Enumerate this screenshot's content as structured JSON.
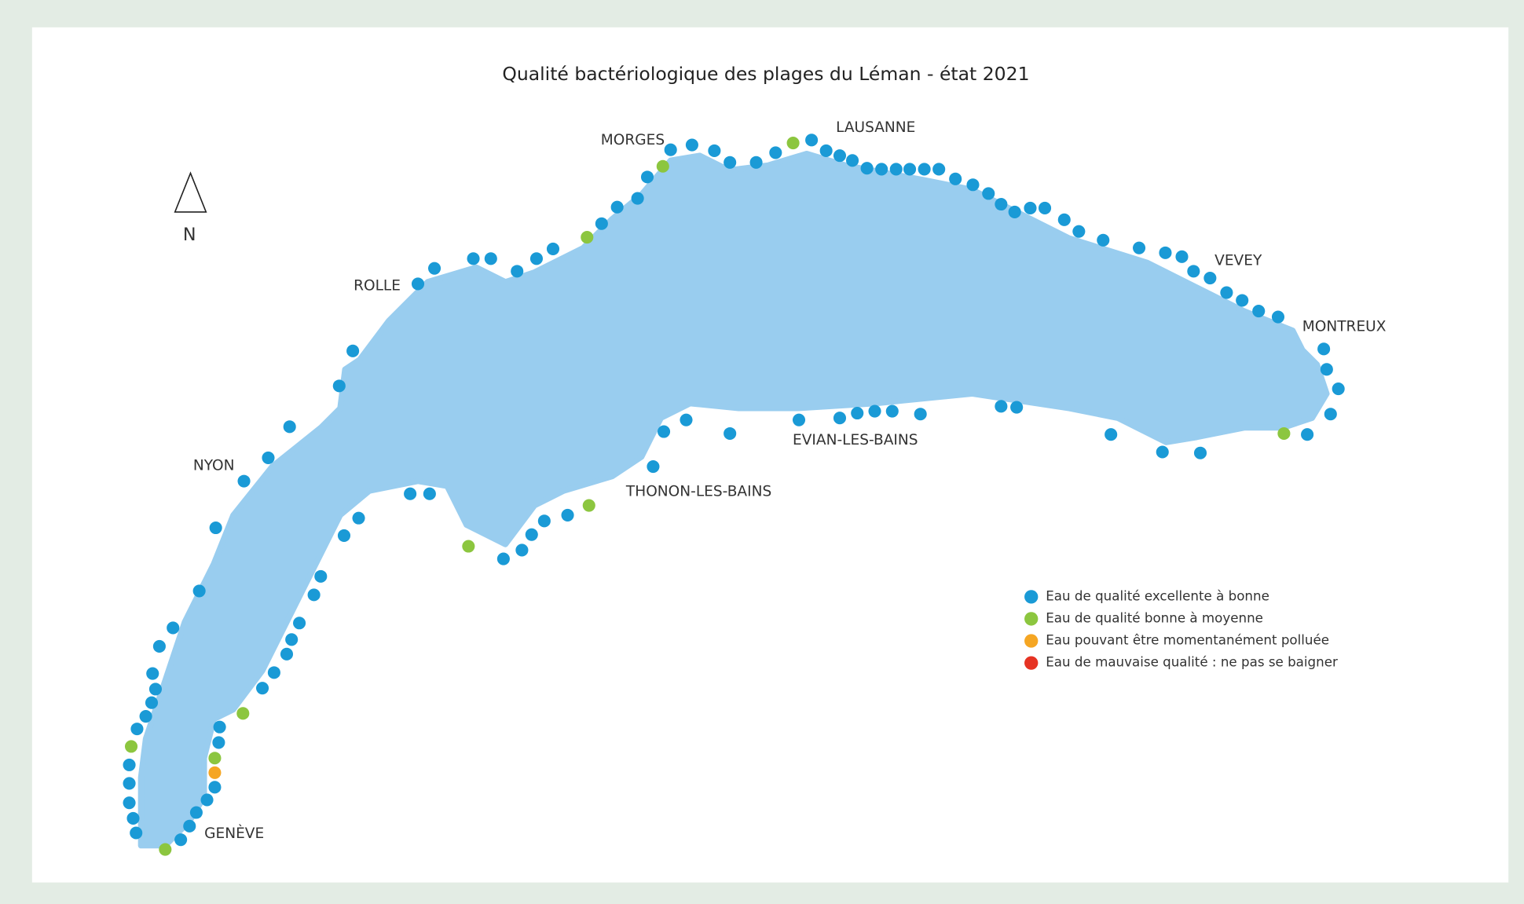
{
  "title": "Qualité bactériologique des plages du Léman - état 2021",
  "north": "N",
  "places": [
    "MORGES",
    "LAUSANNE",
    "ROLLE",
    "NYON",
    "VEVEY",
    "MONTREUX",
    "EVIAN-LES-BAINS",
    "THONON-LES-BAINS",
    "GENÈVE"
  ],
  "legend": [
    {
      "label": "Eau de qualité excellente à bonne",
      "color": "#1a9ad6"
    },
    {
      "label": "Eau de qualité bonne à moyenne",
      "color": "#8cc63f"
    },
    {
      "label": "Eau pouvant être momentanément polluée",
      "color": "#f5a623"
    },
    {
      "label": "Eau de mauvaise qualité : ne pas se baigner",
      "color": "#e63323"
    }
  ]
}
